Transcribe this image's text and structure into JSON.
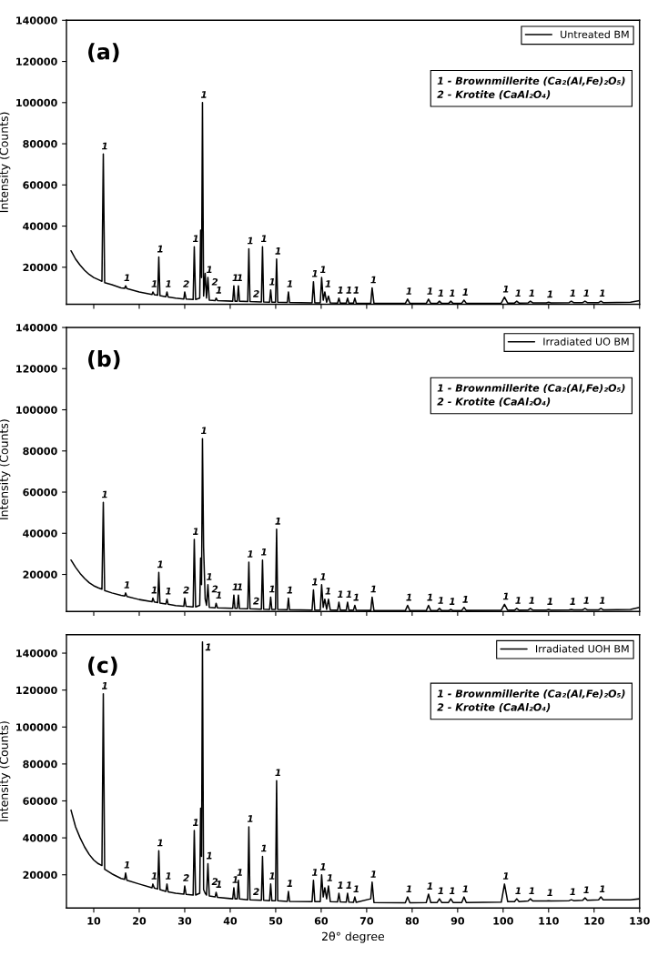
{
  "chart_data": [
    {
      "type": "line",
      "title": "(a)",
      "ylabel": "Intensity (Counts)",
      "legend": "top right",
      "tick_labels": "y",
      "xlim": [
        4,
        130
      ],
      "ylim": [
        2000,
        140000
      ],
      "xticks": [
        10,
        20,
        30,
        40,
        50,
        60,
        70,
        80,
        90,
        100,
        110,
        120,
        130
      ],
      "yticks": [
        20000,
        40000,
        60000,
        80000,
        100000,
        120000,
        140000
      ],
      "series": [
        {
          "name": "Untreated BM",
          "color": "#000000",
          "x": [
            5,
            6,
            7,
            8,
            9,
            10,
            11,
            11.8,
            12.1,
            12.4,
            14,
            16,
            16.8,
            17,
            17.3,
            20,
            22.8,
            23,
            23.3,
            24.05,
            24.3,
            24.55,
            25.85,
            26.1,
            26.35,
            28,
            29.8,
            30,
            30.3,
            31.85,
            32.1,
            32.4,
            33.3,
            33.5,
            33.7,
            33.9,
            34.15,
            34.5,
            34.8,
            35.1,
            35.4,
            36.7,
            36.9,
            37.2,
            40.55,
            40.8,
            41.05,
            41.55,
            41.8,
            42.05,
            43.85,
            44.1,
            44.35,
            46.85,
            47.1,
            47.35,
            48.65,
            48.9,
            49.15,
            49.95,
            50.2,
            50.45,
            52.55,
            52.8,
            53.05,
            58,
            58.3,
            58.6,
            59.8,
            60.1,
            60.45,
            60.8,
            61.2,
            61.6,
            62,
            63.6,
            63.9,
            64.2,
            65.5,
            65.8,
            66.1,
            67.1,
            67.4,
            67.7,
            70.9,
            71.2,
            71.6,
            78.5,
            79,
            79.5,
            83.1,
            83.6,
            84.1,
            85.5,
            86,
            86.5,
            88,
            88.5,
            89,
            90.9,
            91.4,
            91.9,
            99.6,
            100.3,
            101,
            102.5,
            103,
            103.5,
            105.5,
            106,
            106.5,
            109.5,
            110,
            110.5,
            114.5,
            115,
            115.5,
            117.5,
            118,
            118.5,
            121,
            121.5,
            122,
            128,
            130
          ],
          "values": [
            28000,
            24000,
            21000,
            18500,
            16500,
            15000,
            14000,
            13200,
            75000,
            12500,
            11500,
            10000,
            9800,
            11000,
            9600,
            8000,
            6800,
            8000,
            6700,
            6400,
            25000,
            6200,
            5700,
            8000,
            5600,
            5000,
            4600,
            8000,
            4600,
            4300,
            30000,
            4300,
            5000,
            38000,
            15000,
            100000,
            6000,
            17000,
            5000,
            15000,
            4000,
            3800,
            5000,
            3800,
            3500,
            11000,
            3500,
            3500,
            11000,
            3500,
            3300,
            29000,
            3300,
            3100,
            30000,
            3100,
            3000,
            9000,
            3000,
            3000,
            24000,
            3000,
            2900,
            8000,
            2900,
            2700,
            13000,
            2700,
            2700,
            15000,
            4000,
            8000,
            3000,
            6000,
            2700,
            2600,
            5000,
            2600,
            2600,
            5000,
            2600,
            2600,
            5000,
            2600,
            2500,
            10000,
            2500,
            2400,
            4500,
            2400,
            2400,
            4500,
            2400,
            2400,
            3500,
            2400,
            2400,
            3500,
            2400,
            2500,
            4000,
            2500,
            2600,
            5500,
            2600,
            2600,
            3500,
            2600,
            2700,
            3500,
            2700,
            2700,
            3000,
            2700,
            2800,
            3500,
            2800,
            2800,
            3500,
            2800,
            2800,
            3500,
            2800,
            3000,
            3800
          ]
        }
      ],
      "annotations": [
        "1 - Brownmillerite (Ca₂(Al,Fe)₂O₅)",
        "2 - Krotite (CaAl₂O₄)",
        {
          "text": "1",
          "x": 12.1,
          "y": 75000
        },
        {
          "text": "1",
          "x": 17,
          "y": 11000
        },
        {
          "text": "1",
          "x": 23,
          "y": 8000
        },
        {
          "text": "1",
          "x": 24.3,
          "y": 25000
        },
        {
          "text": "1",
          "x": 26.1,
          "y": 8000
        },
        {
          "text": "2",
          "x": 30,
          "y": 8000
        },
        {
          "text": "1",
          "x": 32.1,
          "y": 30000
        },
        {
          "text": "1",
          "x": 33.9,
          "y": 100000
        },
        {
          "text": "1",
          "x": 35.1,
          "y": 15000
        },
        {
          "text": "2",
          "x": 36.3,
          "y": 9000
        },
        {
          "text": "1",
          "x": 37.2,
          "y": 5000
        },
        {
          "text": "1",
          "x": 40.8,
          "y": 11000
        },
        {
          "text": "1",
          "x": 41.8,
          "y": 11000
        },
        {
          "text": "1",
          "x": 44.1,
          "y": 29000
        },
        {
          "text": "2",
          "x": 45.4,
          "y": 3200
        },
        {
          "text": "1",
          "x": 47.1,
          "y": 30000
        },
        {
          "text": "1",
          "x": 48.9,
          "y": 9000
        },
        {
          "text": "1",
          "x": 50.2,
          "y": 24000
        },
        {
          "text": "1",
          "x": 52.8,
          "y": 8000
        },
        {
          "text": "1",
          "x": 58.3,
          "y": 13000
        },
        {
          "text": "1",
          "x": 60.1,
          "y": 15000
        },
        {
          "text": "1",
          "x": 61.2,
          "y": 8000
        },
        {
          "text": "1",
          "x": 63.9,
          "y": 5000
        },
        {
          "text": "1",
          "x": 65.8,
          "y": 5000
        },
        {
          "text": "1",
          "x": 67.4,
          "y": 5000
        },
        {
          "text": "1",
          "x": 71.2,
          "y": 10000
        },
        {
          "text": "1",
          "x": 79,
          "y": 4500
        },
        {
          "text": "1",
          "x": 83.6,
          "y": 4500
        },
        {
          "text": "1",
          "x": 86,
          "y": 3500
        },
        {
          "text": "1",
          "x": 88.5,
          "y": 3500
        },
        {
          "text": "1",
          "x": 91.4,
          "y": 4000
        },
        {
          "text": "1",
          "x": 100.3,
          "y": 5500
        },
        {
          "text": "1",
          "x": 103,
          "y": 3500
        },
        {
          "text": "1",
          "x": 106,
          "y": 3500
        },
        {
          "text": "1",
          "x": 110,
          "y": 3000
        },
        {
          "text": "1",
          "x": 115,
          "y": 3500
        },
        {
          "text": "1",
          "x": 118,
          "y": 3500
        },
        {
          "text": "1",
          "x": 121.5,
          "y": 3500
        }
      ]
    },
    {
      "type": "line",
      "title": "(b)",
      "ylabel": "Intensity (Counts)",
      "legend": "top right",
      "tick_labels": "y",
      "xlim": [
        4,
        130
      ],
      "ylim": [
        2000,
        140000
      ],
      "xticks": [
        10,
        20,
        30,
        40,
        50,
        60,
        70,
        80,
        90,
        100,
        110,
        120,
        130
      ],
      "yticks": [
        20000,
        40000,
        60000,
        80000,
        100000,
        120000,
        140000
      ],
      "series": [
        {
          "name": "Irradiated UO BM",
          "color": "#000000",
          "x": [
            5,
            6,
            7,
            8,
            9,
            10,
            11,
            11.8,
            12.1,
            12.4,
            14,
            16,
            16.8,
            17,
            17.3,
            20,
            22.8,
            23,
            23.3,
            24.05,
            24.3,
            24.55,
            25.85,
            26.1,
            26.35,
            28,
            29.8,
            30,
            30.3,
            31.85,
            32.1,
            32.4,
            33.3,
            33.5,
            33.7,
            33.9,
            34.15,
            34.5,
            34.8,
            35.1,
            35.4,
            36.7,
            36.9,
            37.2,
            40.55,
            40.8,
            41.05,
            41.55,
            41.8,
            42.05,
            43.85,
            44.1,
            44.35,
            46.85,
            47.1,
            47.35,
            48.65,
            48.9,
            49.15,
            49.95,
            50.2,
            50.45,
            52.55,
            52.8,
            53.05,
            58,
            58.3,
            58.6,
            59.8,
            60.1,
            60.45,
            60.8,
            61.2,
            61.6,
            62,
            63.6,
            63.9,
            64.2,
            65.5,
            65.8,
            66.1,
            67.1,
            67.4,
            67.7,
            70.9,
            71.2,
            71.6,
            78.5,
            79,
            79.5,
            83.1,
            83.6,
            84.1,
            85.5,
            86,
            86.5,
            88,
            88.5,
            89,
            90.9,
            91.4,
            91.9,
            99.6,
            100.3,
            101,
            102.5,
            103,
            103.5,
            105.5,
            106,
            106.5,
            109.5,
            110,
            110.5,
            114.5,
            115,
            115.5,
            117.5,
            118,
            118.5,
            121,
            121.5,
            122,
            128,
            130
          ],
          "values": [
            27000,
            23500,
            20500,
            18000,
            16000,
            14500,
            13500,
            12800,
            55000,
            12200,
            11000,
            9800,
            9500,
            11000,
            9300,
            7800,
            6700,
            8500,
            6600,
            6300,
            21000,
            6100,
            5600,
            8000,
            5500,
            4900,
            4500,
            8500,
            4500,
            4200,
            37000,
            4200,
            5000,
            28000,
            15000,
            86000,
            33000,
            8000,
            5000,
            15000,
            4000,
            3800,
            6000,
            3800,
            3500,
            10000,
            3500,
            3500,
            10000,
            3400,
            3300,
            26000,
            3300,
            3100,
            27000,
            3100,
            3000,
            9000,
            3000,
            3000,
            42000,
            3000,
            2900,
            8500,
            2900,
            2700,
            12500,
            2700,
            2700,
            15000,
            4000,
            8000,
            3000,
            8000,
            2700,
            2600,
            6500,
            2600,
            2600,
            6500,
            2600,
            2600,
            5000,
            2600,
            2500,
            9000,
            2500,
            2400,
            5000,
            2400,
            2400,
            5000,
            2400,
            2400,
            3500,
            2400,
            2400,
            3000,
            2400,
            2500,
            4000,
            2500,
            2600,
            5500,
            2600,
            2600,
            3500,
            2600,
            2700,
            3500,
            2700,
            2700,
            3000,
            2700,
            2800,
            3000,
            2800,
            2800,
            3500,
            2800,
            2800,
            3500,
            2800,
            3000,
            4000
          ]
        }
      ],
      "annotations": [
        "1 - Brownmillerite (Ca₂(Al,Fe)₂O₅)",
        "2 - Krotite (CaAl₂O₄)",
        {
          "text": "1",
          "x": 12.1,
          "y": 55000
        },
        {
          "text": "1",
          "x": 17,
          "y": 11000
        },
        {
          "text": "1",
          "x": 23,
          "y": 8500
        },
        {
          "text": "1",
          "x": 24.3,
          "y": 21000
        },
        {
          "text": "1",
          "x": 26.1,
          "y": 8000
        },
        {
          "text": "2",
          "x": 30,
          "y": 8500
        },
        {
          "text": "1",
          "x": 32.1,
          "y": 37000
        },
        {
          "text": "1",
          "x": 33.9,
          "y": 86000
        },
        {
          "text": "1",
          "x": 35.1,
          "y": 15000
        },
        {
          "text": "2",
          "x": 36.3,
          "y": 9000
        },
        {
          "text": "1",
          "x": 37.2,
          "y": 6000
        },
        {
          "text": "1",
          "x": 40.8,
          "y": 10000
        },
        {
          "text": "1",
          "x": 41.8,
          "y": 10000
        },
        {
          "text": "1",
          "x": 44.1,
          "y": 26000
        },
        {
          "text": "2",
          "x": 45.4,
          "y": 3200
        },
        {
          "text": "1",
          "x": 47.1,
          "y": 27000
        },
        {
          "text": "1",
          "x": 48.9,
          "y": 9000
        },
        {
          "text": "1",
          "x": 50.2,
          "y": 42000
        },
        {
          "text": "1",
          "x": 52.8,
          "y": 8500
        },
        {
          "text": "1",
          "x": 58.3,
          "y": 12500
        },
        {
          "text": "1",
          "x": 60.1,
          "y": 15000
        },
        {
          "text": "1",
          "x": 61.2,
          "y": 8000
        },
        {
          "text": "1",
          "x": 63.9,
          "y": 6500
        },
        {
          "text": "1",
          "x": 65.8,
          "y": 6500
        },
        {
          "text": "1",
          "x": 67.4,
          "y": 5000
        },
        {
          "text": "1",
          "x": 71.2,
          "y": 9000
        },
        {
          "text": "1",
          "x": 79,
          "y": 5000
        },
        {
          "text": "1",
          "x": 83.6,
          "y": 5000
        },
        {
          "text": "1",
          "x": 86,
          "y": 3500
        },
        {
          "text": "1",
          "x": 88.5,
          "y": 3000
        },
        {
          "text": "1",
          "x": 91.4,
          "y": 4000
        },
        {
          "text": "1",
          "x": 100.3,
          "y": 5500
        },
        {
          "text": "1",
          "x": 103,
          "y": 3500
        },
        {
          "text": "1",
          "x": 106,
          "y": 3500
        },
        {
          "text": "1",
          "x": 110,
          "y": 3000
        },
        {
          "text": "1",
          "x": 115,
          "y": 3000
        },
        {
          "text": "1",
          "x": 118,
          "y": 3500
        },
        {
          "text": "1",
          "x": 121.5,
          "y": 3500
        }
      ]
    },
    {
      "type": "line",
      "title": "(c)",
      "ylabel": "Intensity (Counts)",
      "xlabel": "2θ° degree",
      "legend": "top right",
      "xlim": [
        4,
        130
      ],
      "ylim": [
        2000,
        150000
      ],
      "xticks": [
        10,
        20,
        30,
        40,
        50,
        60,
        70,
        80,
        90,
        100,
        110,
        120,
        130
      ],
      "yticks": [
        20000,
        40000,
        60000,
        80000,
        100000,
        120000,
        140000
      ],
      "series": [
        {
          "name": "Irradiated UOH BM",
          "color": "#000000",
          "x": [
            5,
            6,
            7,
            8,
            9,
            10,
            11,
            11.8,
            12.1,
            12.4,
            14,
            16,
            16.8,
            17,
            17.3,
            20,
            22.8,
            23,
            23.3,
            24.05,
            24.3,
            24.55,
            25.85,
            26.1,
            26.35,
            28,
            29.8,
            30,
            30.3,
            31.85,
            32.1,
            32.4,
            33.3,
            33.5,
            33.7,
            33.9,
            34.15,
            34.5,
            34.8,
            35.1,
            35.4,
            36.7,
            36.9,
            37.2,
            40.55,
            40.8,
            41.05,
            41.55,
            41.8,
            42.05,
            43.85,
            44.1,
            44.35,
            46.85,
            47.1,
            47.35,
            48.65,
            48.9,
            49.15,
            49.95,
            50.2,
            50.45,
            52.55,
            52.8,
            53.05,
            58,
            58.3,
            58.6,
            59.8,
            60.1,
            60.45,
            60.8,
            61.2,
            61.6,
            62,
            63.6,
            63.9,
            64.2,
            65.5,
            65.8,
            66.1,
            67.1,
            67.4,
            67.7,
            70.9,
            71.2,
            71.6,
            78.5,
            79,
            79.5,
            83.1,
            83.6,
            84.1,
            85.5,
            86,
            86.5,
            88,
            88.5,
            89,
            90.9,
            91.4,
            91.9,
            99.6,
            100.3,
            101,
            102.5,
            103,
            103.5,
            105.5,
            106,
            106.5,
            109.5,
            110,
            110.5,
            114.5,
            115,
            115.5,
            117.5,
            118,
            118.5,
            121,
            121.5,
            122,
            128,
            130
          ],
          "values": [
            55000,
            46000,
            40000,
            35000,
            31000,
            28000,
            26000,
            25000,
            118000,
            23000,
            20500,
            18000,
            17500,
            21000,
            17000,
            15000,
            13000,
            15000,
            12800,
            12300,
            33000,
            12000,
            11000,
            15000,
            10800,
            10000,
            9500,
            14000,
            9400,
            9000,
            44000,
            9000,
            10000,
            56000,
            30000,
            146000,
            12000,
            10000,
            9000,
            26000,
            8500,
            8000,
            10500,
            7800,
            7000,
            13000,
            7000,
            7000,
            17000,
            6900,
            6500,
            46000,
            6500,
            6200,
            30000,
            6200,
            6000,
            15000,
            6000,
            6000,
            71000,
            6000,
            5600,
            11000,
            5600,
            5500,
            17000,
            5500,
            5500,
            20000,
            8000,
            13000,
            7000,
            14000,
            5500,
            5300,
            10000,
            5300,
            5200,
            10000,
            5200,
            5100,
            8000,
            5100,
            7000,
            16000,
            5000,
            4800,
            8000,
            4800,
            5000,
            9500,
            5000,
            5000,
            7000,
            5000,
            5000,
            7000,
            5000,
            5000,
            8000,
            5000,
            5200,
            15000,
            5500,
            5500,
            7000,
            5500,
            5800,
            7000,
            5800,
            5800,
            6000,
            5800,
            6000,
            6500,
            6000,
            6200,
            7500,
            6200,
            6500,
            8000,
            6500,
            6500,
            7000
          ]
        }
      ],
      "annotations": [
        "1 - Brownmillerite (Ca₂(Al,Fe)₂O₅)",
        "2 - Krotite (CaAl₂O₄)",
        {
          "text": "1",
          "x": 12.1,
          "y": 118000
        },
        {
          "text": "1",
          "x": 17,
          "y": 21000
        },
        {
          "text": "1",
          "x": 23,
          "y": 15000
        },
        {
          "text": "1",
          "x": 24.3,
          "y": 33000
        },
        {
          "text": "1",
          "x": 26.1,
          "y": 15000
        },
        {
          "text": "2",
          "x": 30,
          "y": 14000
        },
        {
          "text": "1",
          "x": 32.1,
          "y": 44000
        },
        {
          "text": "1",
          "x": 33.9,
          "y": 146000
        },
        {
          "text": "1",
          "x": 35.1,
          "y": 26000
        },
        {
          "text": "2",
          "x": 36.3,
          "y": 12000
        },
        {
          "text": "1",
          "x": 37.2,
          "y": 10500
        },
        {
          "text": "1",
          "x": 40.8,
          "y": 13000
        },
        {
          "text": "1",
          "x": 41.8,
          "y": 17000
        },
        {
          "text": "1",
          "x": 44.1,
          "y": 46000
        },
        {
          "text": "2",
          "x": 45.4,
          "y": 6500
        },
        {
          "text": "1",
          "x": 47.1,
          "y": 30000
        },
        {
          "text": "1",
          "x": 48.9,
          "y": 15000
        },
        {
          "text": "1",
          "x": 50.2,
          "y": 71000
        },
        {
          "text": "1",
          "x": 52.8,
          "y": 11000
        },
        {
          "text": "1",
          "x": 58.3,
          "y": 17000
        },
        {
          "text": "1",
          "x": 60.1,
          "y": 20000
        },
        {
          "text": "1",
          "x": 61.6,
          "y": 14000
        },
        {
          "text": "1",
          "x": 63.9,
          "y": 10000
        },
        {
          "text": "1",
          "x": 65.8,
          "y": 10000
        },
        {
          "text": "1",
          "x": 67.4,
          "y": 8000
        },
        {
          "text": "1",
          "x": 71.2,
          "y": 16000
        },
        {
          "text": "1",
          "x": 79,
          "y": 8000
        },
        {
          "text": "1",
          "x": 83.6,
          "y": 9500
        },
        {
          "text": "1",
          "x": 86,
          "y": 7000
        },
        {
          "text": "1",
          "x": 88.5,
          "y": 7000
        },
        {
          "text": "1",
          "x": 91.4,
          "y": 8000
        },
        {
          "text": "1",
          "x": 100.3,
          "y": 15000
        },
        {
          "text": "1",
          "x": 103,
          "y": 7000
        },
        {
          "text": "1",
          "x": 106,
          "y": 7000
        },
        {
          "text": "1",
          "x": 110,
          "y": 6000
        },
        {
          "text": "1",
          "x": 115,
          "y": 6500
        },
        {
          "text": "1",
          "x": 118,
          "y": 7500
        },
        {
          "text": "1",
          "x": 121.5,
          "y": 8000
        }
      ]
    }
  ]
}
